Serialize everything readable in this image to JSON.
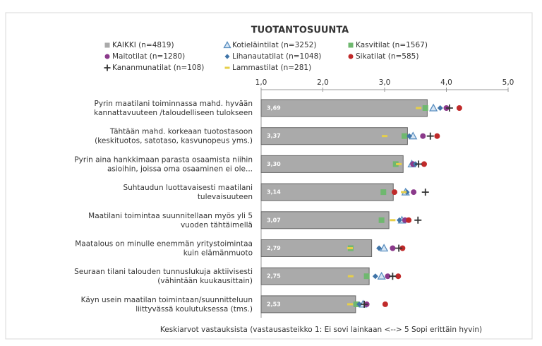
{
  "chart_data": {
    "type": "bar_dot",
    "title": "TUOTANTOSUUNTA",
    "x_axis_label": "Keskiarvot vastauksista (vastausasteikko 1: Ei sovi lainkaan <--> 5 Sopi erittäin hyvin)",
    "categories": [
      [
        "Pyrin maatilani toiminnassa mahd. hyvään",
        "kannattavuuteen /taloudelliseen tulokseen"
      ],
      [
        "Tähtään mahd. korkeaan tuotostasoon",
        "(keskituotos, satotaso, kasvunopeus yms.)"
      ],
      [
        "Pyrin aina hankkimaan parasta osaamista niihin",
        "asioihin, joissa oma osaaminen ei ole..."
      ],
      [
        "Suhtaudun luottavaisesti maatilani",
        "tulevaisuuteen"
      ],
      [
        "Maatilani toimintaa suunnitellaan myös yli 5",
        "vuoden tähtäimellä"
      ],
      [
        "Maatalous on minulle enemmän yritystoimintaa",
        "kuin elämänmuoto"
      ],
      [
        "Seuraan tilani talouden tunnuslukuja aktiivisesti",
        "(vähintään kuukausittain)"
      ],
      [
        "Käyn usein maatilan toimintaan/suunnitteluun",
        "liittyvässä koulutuksessa (tms.)"
      ]
    ],
    "xlim": [
      1,
      5
    ],
    "xticks": [
      {
        "value": 1,
        "label": "1,0"
      },
      {
        "value": 2,
        "label": "2,0"
      },
      {
        "value": 3,
        "label": "3,0"
      },
      {
        "value": 4,
        "label": "4,0"
      },
      {
        "value": 5,
        "label": "5,0"
      }
    ],
    "series": [
      {
        "name": "KAIKKI (n=4819)",
        "color": "#aaaaaa",
        "marker": "bar",
        "values": [
          3.69,
          3.37,
          3.3,
          3.14,
          3.07,
          2.79,
          2.75,
          2.53
        ],
        "value_labels": [
          "3,69",
          "3,37",
          "3,30",
          "3,14",
          "3,07",
          "2,79",
          "2,75",
          "2,53"
        ]
      },
      {
        "name": "Kotieläintilat (n=3252)",
        "color": "#5b8fc0",
        "marker": "triangle",
        "values": [
          3.79,
          3.46,
          3.44,
          3.34,
          3.28,
          2.99,
          2.95,
          2.65
        ]
      },
      {
        "name": "Kasvitilat (n=1567)",
        "color": "#6fb86f",
        "marker": "square",
        "values": [
          3.66,
          3.32,
          3.18,
          2.98,
          2.95,
          2.45,
          2.71,
          2.54
        ]
      },
      {
        "name": "Maitotilat (n=1280)",
        "color": "#8b3a8b",
        "marker": "circle",
        "values": [
          4.0,
          3.62,
          3.46,
          3.47,
          3.33,
          3.13,
          3.05,
          2.71
        ]
      },
      {
        "name": "Lihanautatilat (n=1048)",
        "color": "#3f74a8",
        "marker": "diamond",
        "values": [
          3.9,
          3.4,
          3.5,
          3.36,
          3.24,
          2.91,
          2.85,
          2.59
        ]
      },
      {
        "name": "Sikatilat (n=585)",
        "color": "#c02a2a",
        "marker": "circle",
        "values": [
          4.21,
          3.85,
          3.64,
          3.16,
          3.39,
          3.29,
          3.22,
          3.01
        ]
      },
      {
        "name": "Kananmunatilat (n=108)",
        "color": "#333333",
        "marker": "plus",
        "values": [
          4.05,
          3.74,
          3.55,
          3.66,
          3.54,
          3.23,
          3.13,
          2.67
        ]
      },
      {
        "name": "Lammastilat (n=281)",
        "color": "#e6cf4a",
        "marker": "dash",
        "values": [
          3.55,
          3.0,
          3.23,
          3.31,
          3.13,
          2.44,
          2.45,
          2.44
        ]
      }
    ]
  }
}
